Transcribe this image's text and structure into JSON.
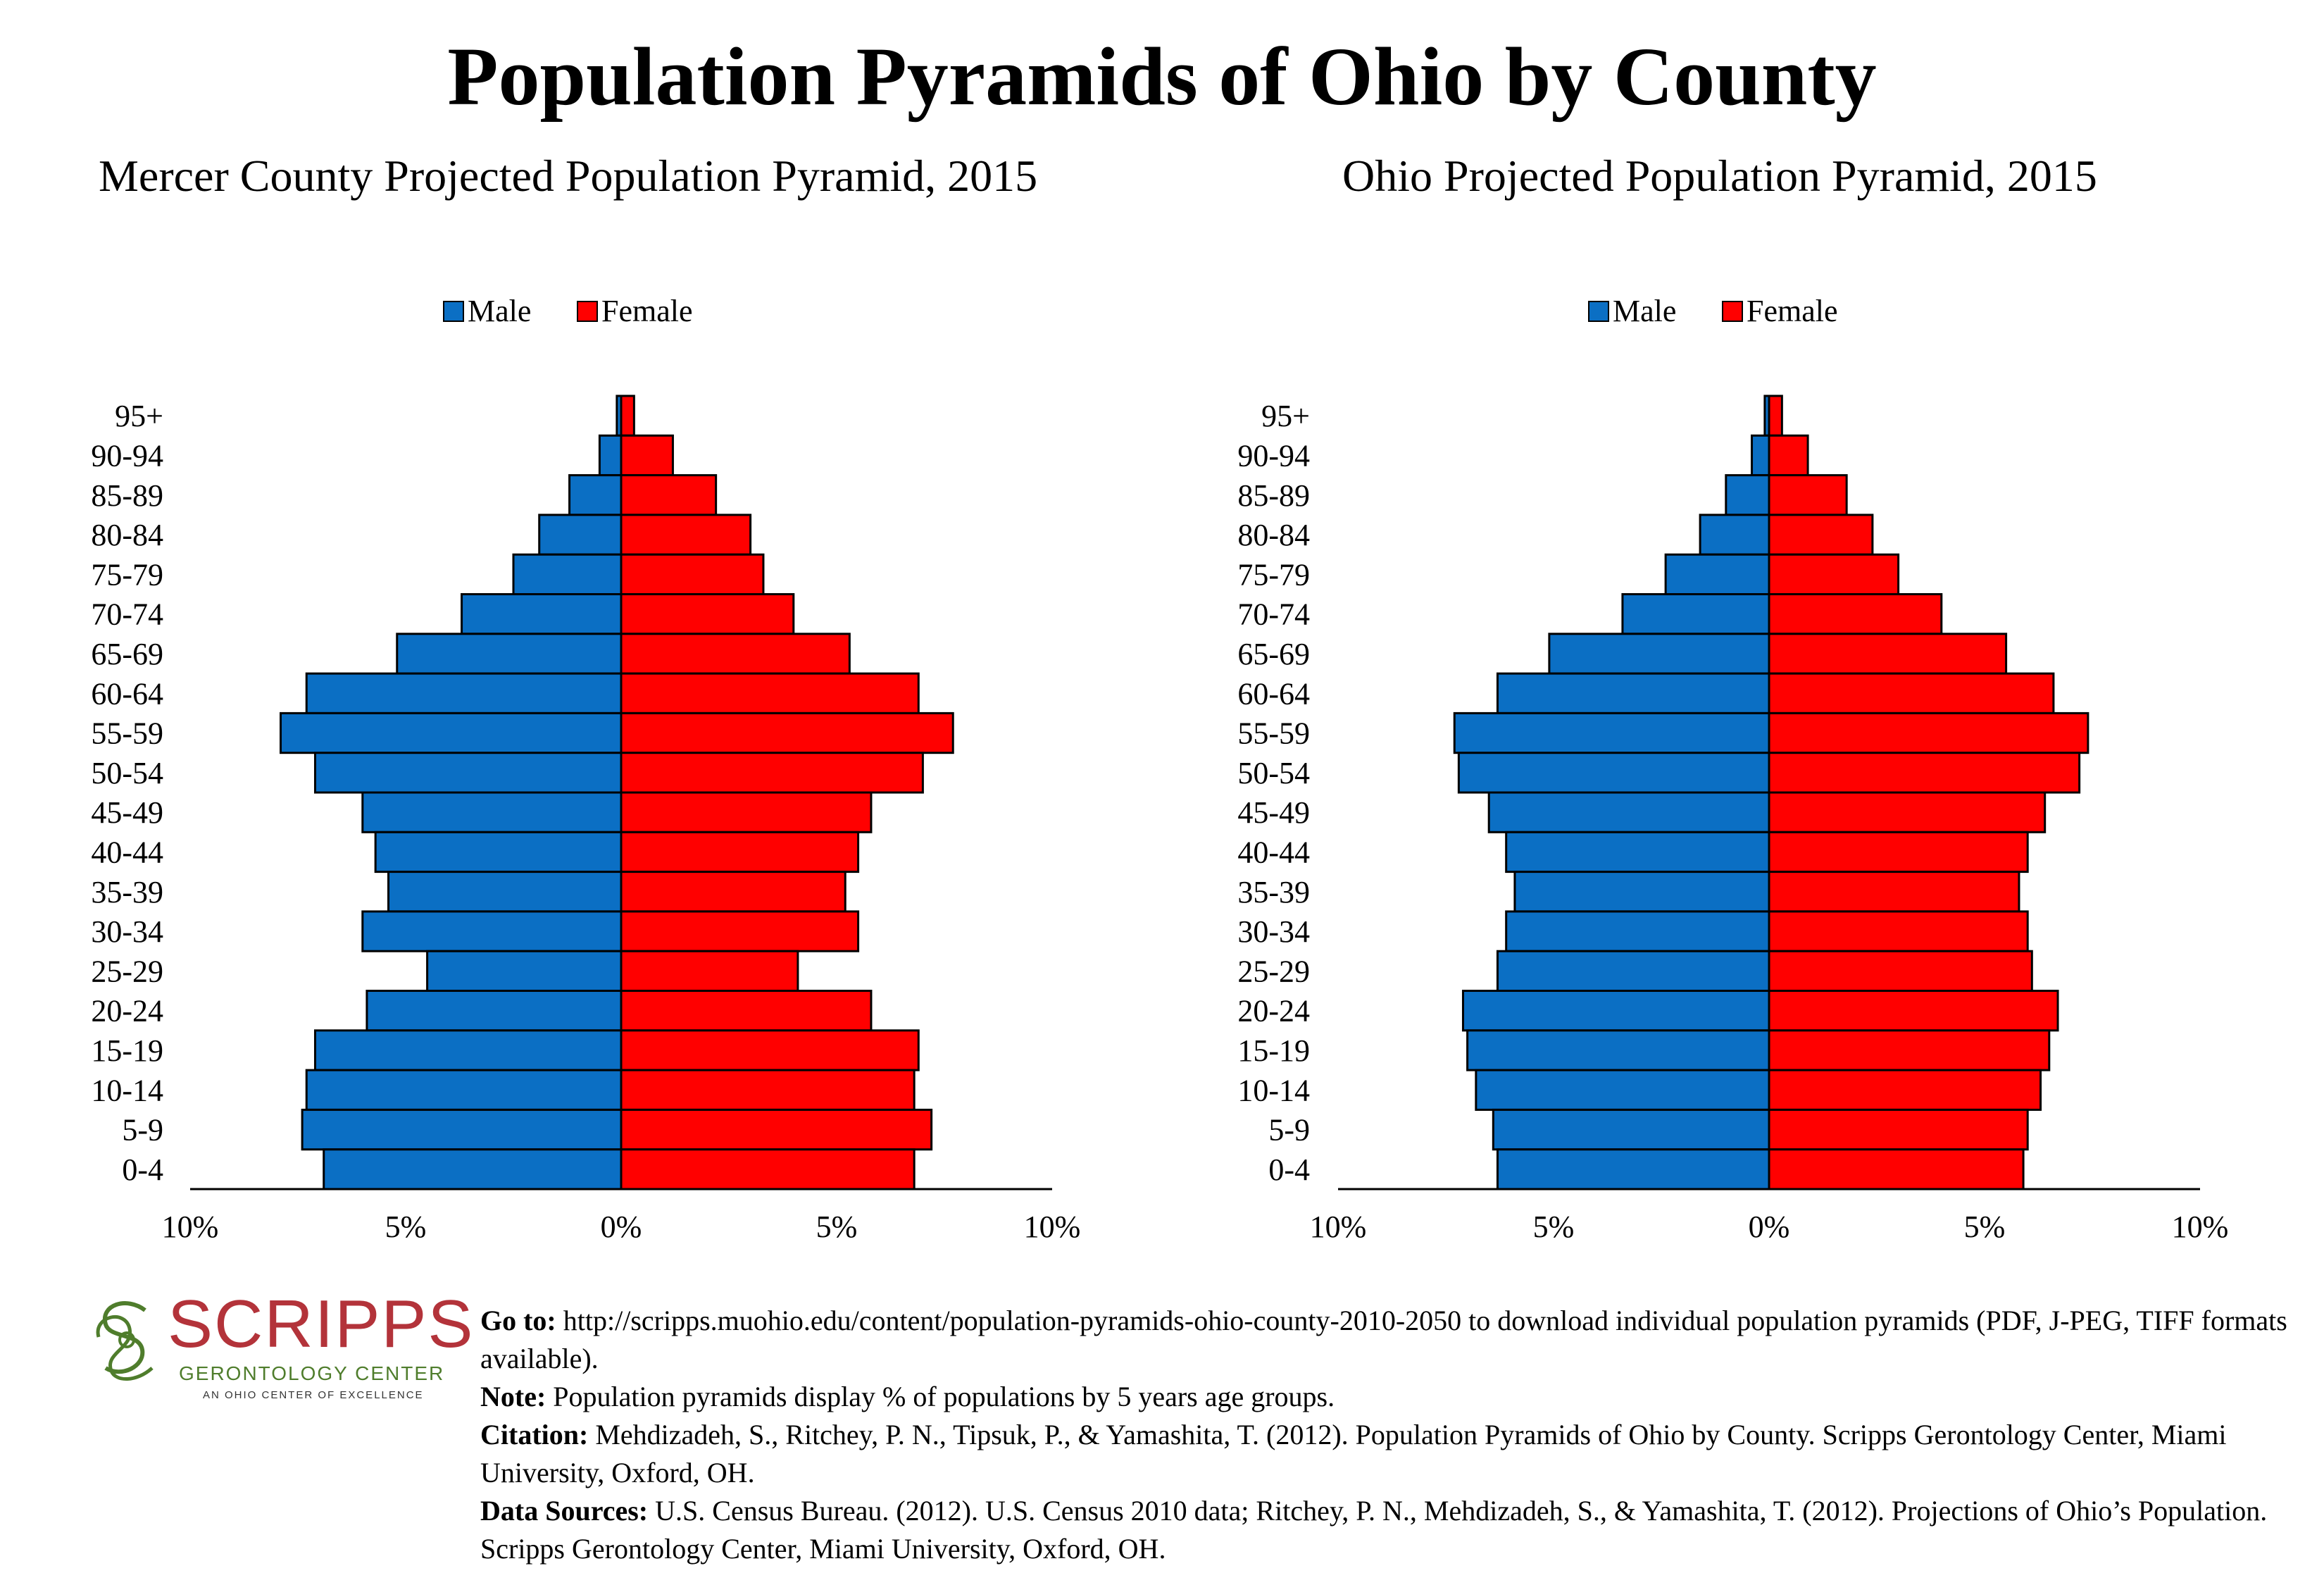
{
  "title": "Population Pyramids of Ohio by County",
  "colors": {
    "male": "#0b6fc4",
    "female": "#ff0000",
    "stroke": "#000000",
    "logo_red": "#b3333a",
    "logo_green": "#4f7d2c"
  },
  "chart_data": [
    {
      "type": "bar",
      "orientation": "horizontal-pyramid",
      "title": "Mercer County Projected Population Pyramid, 2015",
      "legend": [
        "Male",
        "Female"
      ],
      "legend_position": "top-center",
      "categories": [
        "95+",
        "90-94",
        "85-89",
        "80-84",
        "75-79",
        "70-74",
        "65-69",
        "60-64",
        "55-59",
        "50-54",
        "45-49",
        "40-44",
        "35-39",
        "30-34",
        "25-29",
        "20-24",
        "15-19",
        "10-14",
        "5-9",
        "0-4"
      ],
      "series": [
        {
          "name": "Male",
          "values": [
            0.1,
            0.5,
            1.2,
            1.9,
            2.5,
            3.7,
            5.2,
            7.3,
            7.9,
            7.1,
            6.0,
            5.7,
            5.4,
            6.0,
            4.5,
            5.9,
            7.1,
            7.3,
            7.4,
            6.9
          ]
        },
        {
          "name": "Female",
          "values": [
            0.3,
            1.2,
            2.2,
            3.0,
            3.3,
            4.0,
            5.3,
            6.9,
            7.7,
            7.0,
            5.8,
            5.5,
            5.2,
            5.5,
            4.1,
            5.8,
            6.9,
            6.8,
            7.2,
            6.8
          ]
        }
      ],
      "xlim": [
        -10,
        10
      ],
      "xticks": [
        "10%",
        "5%",
        "0%",
        "5%",
        "10%"
      ],
      "grid": false
    },
    {
      "type": "bar",
      "orientation": "horizontal-pyramid",
      "title": "Ohio Projected Population Pyramid, 2015",
      "legend": [
        "Male",
        "Female"
      ],
      "legend_position": "top-center",
      "categories": [
        "95+",
        "90-94",
        "85-89",
        "80-84",
        "75-79",
        "70-74",
        "65-69",
        "60-64",
        "55-59",
        "50-54",
        "45-49",
        "40-44",
        "35-39",
        "30-34",
        "25-29",
        "20-24",
        "15-19",
        "10-14",
        "5-9",
        "0-4"
      ],
      "series": [
        {
          "name": "Male",
          "values": [
            0.1,
            0.4,
            1.0,
            1.6,
            2.4,
            3.4,
            5.1,
            6.3,
            7.3,
            7.2,
            6.5,
            6.1,
            5.9,
            6.1,
            6.3,
            7.1,
            7.0,
            6.8,
            6.4,
            6.3
          ]
        },
        {
          "name": "Female",
          "values": [
            0.3,
            0.9,
            1.8,
            2.4,
            3.0,
            4.0,
            5.5,
            6.6,
            7.4,
            7.2,
            6.4,
            6.0,
            5.8,
            6.0,
            6.1,
            6.7,
            6.5,
            6.3,
            6.0,
            5.9
          ]
        }
      ],
      "xlim": [
        -10,
        10
      ],
      "xticks": [
        "10%",
        "5%",
        "0%",
        "5%",
        "10%"
      ],
      "grid": false
    }
  ],
  "logo": {
    "word": "SCRIPPS",
    "sub": "GERONTOLOGY CENTER",
    "tag": "AN OHIO CENTER OF EXCELLENCE"
  },
  "footer": {
    "goto_label": "Go to:",
    "goto_text": " http://scripps.muohio.edu/content/population-pyramids-ohio-county-2010-2050 to download individual population pyramids (PDF, J-PEG, TIFF formats available).",
    "note_label": "Note:",
    "note_text": " Population pyramids display % of populations by 5 years age groups.",
    "citation_label": "Citation:",
    "citation_text": " Mehdizadeh, S., Ritchey, P. N., Tipsuk, P., & Yamashita, T. (2012). Population Pyramids of Ohio by County. Scripps Gerontology Center, Miami University, Oxford, OH.",
    "sources_label": "Data Sources:",
    "sources_text": " U.S. Census Bureau. (2012). U.S. Census 2010 data; Ritchey, P. N., Mehdizadeh, S., & Yamashita, T. (2012). Projections of Ohio’s Population. Scripps Gerontology Center, Miami University, Oxford, OH."
  }
}
